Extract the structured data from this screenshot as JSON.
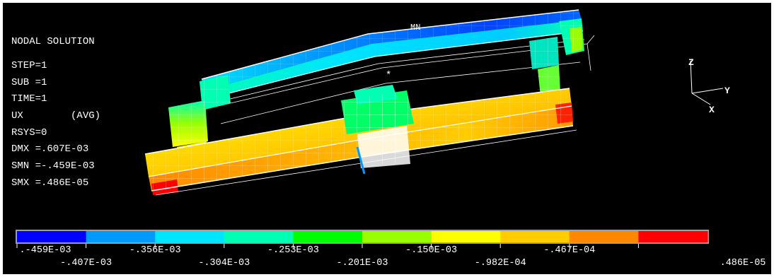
{
  "window": {
    "title": "NODAL SOLUTION"
  },
  "info": {
    "title": "NODAL SOLUTION",
    "step": "STEP=1",
    "sub": "SUB =1",
    "time": "TIME=1",
    "component": "UX        (AVG)",
    "rsys": "RSYS=0",
    "dmx": "DMX =.607E-03",
    "smn": "SMN =-.459E-03",
    "smx": "SMX =.486E-05"
  },
  "markers": {
    "min": "MN"
  },
  "triad": {
    "z": "Z",
    "y": "Y",
    "x": "X"
  },
  "colors": {
    "background": "#000000",
    "mesh_lines": "#ffffff",
    "bands": [
      "#0000ff",
      "#0099ff",
      "#00e5ff",
      "#00ffb3",
      "#00ff00",
      "#99ff00",
      "#ffff00",
      "#ffcc00",
      "#ff8800",
      "#ff0000"
    ]
  },
  "legend": {
    "tick_labels": [
      ".-459E-03",
      "-.407E-03",
      "-.356E-03",
      "-.304E-03",
      "-.253E-03",
      "-.201E-03",
      "-.150E-03",
      "-.982E-04",
      "-.467E-04",
      ".486E-05"
    ],
    "values": [
      -0.000459,
      -0.000407,
      -0.000356,
      -0.000304,
      -0.000253,
      -0.000201,
      -0.00015,
      -9.82e-05,
      -4.67e-05,
      4.86e-06
    ]
  }
}
